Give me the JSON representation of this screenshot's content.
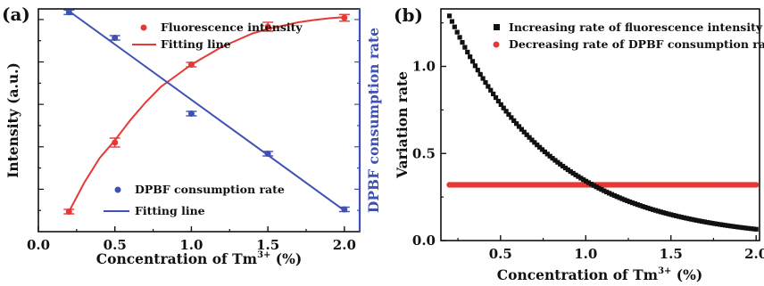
{
  "chart_data": [
    {
      "panel_label": "(a)",
      "type": "scatter",
      "xlabel": "Concentration of Tm",
      "xlabel_sup": "3+",
      "xlabel_unit": " (%)",
      "ylabel": "Intensity (a.u.)",
      "y2label": "DPBF consumption rate",
      "xlim": [
        0.0,
        2.1
      ],
      "xticks": [
        "0.0",
        "0.5",
        "1.0",
        "1.5",
        "2.0"
      ],
      "xtick_values": [
        0.0,
        0.5,
        1.0,
        1.5,
        2.0
      ],
      "ylim": [
        0,
        1
      ],
      "y_tick_labels": "none",
      "y2_tick_labels": "none",
      "colors": {
        "left": "#e53935",
        "right": "#3f51b5",
        "axis_right": "#3f51b5"
      },
      "series": [
        {
          "name": "Fluorescence intensity",
          "axis": "left",
          "marker": "circle",
          "color": "#e53935",
          "x": [
            0.2,
            0.5,
            1.0,
            1.5,
            2.0
          ],
          "y": [
            0.09,
            0.4,
            0.75,
            0.92,
            0.96
          ],
          "err": [
            0.01,
            0.02,
            0.01,
            0.02,
            0.015
          ]
        },
        {
          "name": "Fitting line",
          "axis": "left",
          "style": "line",
          "color": "#e53935",
          "x": [
            0.2,
            0.3,
            0.4,
            0.5,
            0.6,
            0.7,
            0.8,
            0.9,
            1.0,
            1.1,
            1.2,
            1.3,
            1.4,
            1.5,
            1.6,
            1.7,
            1.8,
            1.9,
            2.0
          ],
          "y": [
            0.09,
            0.22,
            0.33,
            0.41,
            0.5,
            0.58,
            0.65,
            0.7,
            0.75,
            0.79,
            0.83,
            0.86,
            0.89,
            0.91,
            0.925,
            0.94,
            0.95,
            0.958,
            0.963
          ]
        },
        {
          "name": "DPBF consumption rate",
          "axis": "right",
          "marker": "circle",
          "color": "#3f51b5",
          "x": [
            0.2,
            0.5,
            1.0,
            1.5,
            2.0
          ],
          "y": [
            0.985,
            0.87,
            0.53,
            0.35,
            0.1
          ],
          "err": [
            0.01,
            0.01,
            0.01,
            0.01,
            0.01
          ]
        },
        {
          "name": "Fitting line",
          "axis": "right",
          "style": "line",
          "color": "#3f51b5",
          "x": [
            0.2,
            2.0
          ],
          "y": [
            0.99,
            0.095
          ]
        }
      ],
      "legend_top": [
        "Fluorescence intensity",
        "Fitting line"
      ],
      "legend_bottom": [
        "DPBF consumption rate",
        "Fitting line"
      ]
    },
    {
      "panel_label": "(b)",
      "type": "scatter",
      "xlabel": "Concentration of Tm",
      "xlabel_sup": "3+",
      "xlabel_unit": " (%)",
      "ylabel": "Variation rate",
      "xlim": [
        0.15,
        2.02
      ],
      "ylim": [
        0.0,
        1.33
      ],
      "xticks": [
        "0.5",
        "1.0",
        "1.5",
        "2.0"
      ],
      "xtick_values": [
        0.5,
        1.0,
        1.5,
        2.0
      ],
      "yticks": [
        "0.0",
        "0.5",
        "1.0"
      ],
      "ytick_values": [
        0.0,
        0.5,
        1.0
      ],
      "series": [
        {
          "name": "Increasing rate of fluorescence intensity",
          "marker": "square",
          "color": "#111111",
          "function": "exponential decay",
          "x_range": [
            0.2,
            2.0
          ],
          "y_at_x_start": 1.29,
          "y_at_x_end": 0.065,
          "points": 120
        },
        {
          "name": "Decreasing rate of DPBF consumption rate",
          "marker": "circle",
          "color": "#e53935",
          "x_range": [
            0.2,
            2.0
          ],
          "y_constant": 0.32,
          "points": 130
        }
      ]
    }
  ]
}
